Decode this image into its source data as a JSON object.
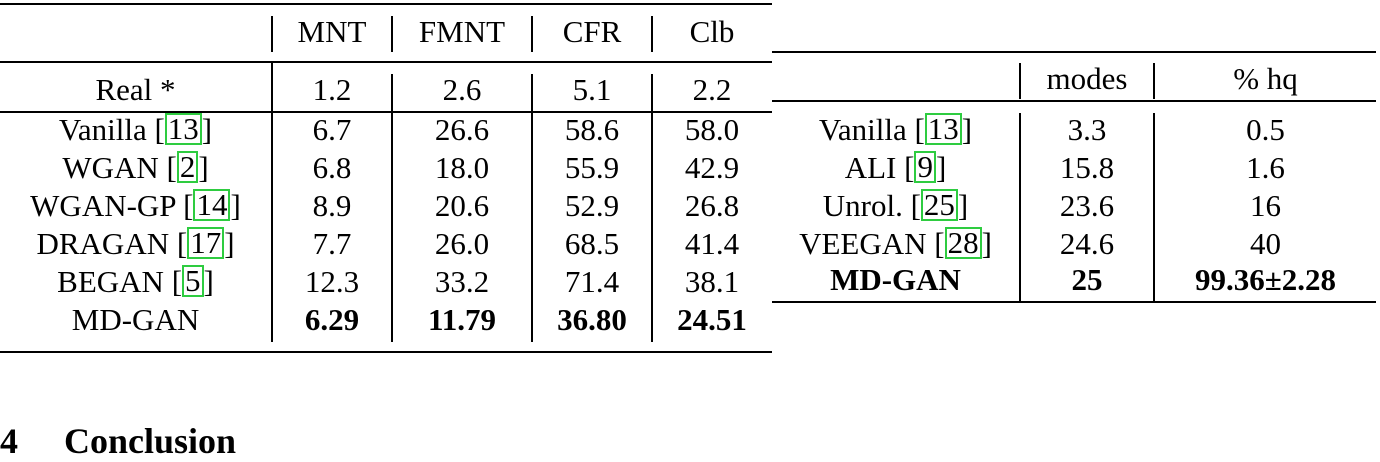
{
  "table_left": {
    "columns": [
      "MNT",
      "FMNT",
      "CFR",
      "Clb"
    ],
    "real_row": {
      "label": "Real *",
      "values": [
        "1.2",
        "2.6",
        "5.1",
        "2.2"
      ]
    },
    "rows": [
      {
        "name": "Vanilla ",
        "cite": "13",
        "values": [
          "6.7",
          "26.6",
          "58.6",
          "58.0"
        ]
      },
      {
        "name": "WGAN ",
        "cite": "2",
        "values": [
          "6.8",
          "18.0",
          "55.9",
          "42.9"
        ]
      },
      {
        "name": "WGAN-GP ",
        "cite": "14",
        "values": [
          "8.9",
          "20.6",
          "52.9",
          "26.8"
        ]
      },
      {
        "name": "DRAGAN ",
        "cite": "17",
        "values": [
          "7.7",
          "26.0",
          "68.5",
          "41.4"
        ]
      },
      {
        "name": "BEGAN ",
        "cite": "5",
        "values": [
          "12.3",
          "33.2",
          "71.4",
          "38.1"
        ]
      }
    ],
    "ours": {
      "name": "MD-GAN",
      "values": [
        "6.29",
        "11.79",
        "36.80",
        "24.51"
      ]
    }
  },
  "table_right": {
    "columns": [
      "modes",
      "% hq"
    ],
    "rows": [
      {
        "name": "Vanilla ",
        "cite": "13",
        "values": [
          "3.3",
          "0.5"
        ]
      },
      {
        "name": "ALI ",
        "cite": "9",
        "values": [
          "15.8",
          "1.6"
        ]
      },
      {
        "name": "Unrol. ",
        "cite": "25",
        "values": [
          "23.6",
          "16"
        ]
      },
      {
        "name": "VEEGAN ",
        "cite": "28",
        "values": [
          "24.6",
          "40"
        ]
      }
    ],
    "ours": {
      "name": "MD-GAN",
      "values": [
        "25",
        "99.36±2.28"
      ]
    }
  },
  "section": {
    "number": "4",
    "title": "Conclusion"
  }
}
